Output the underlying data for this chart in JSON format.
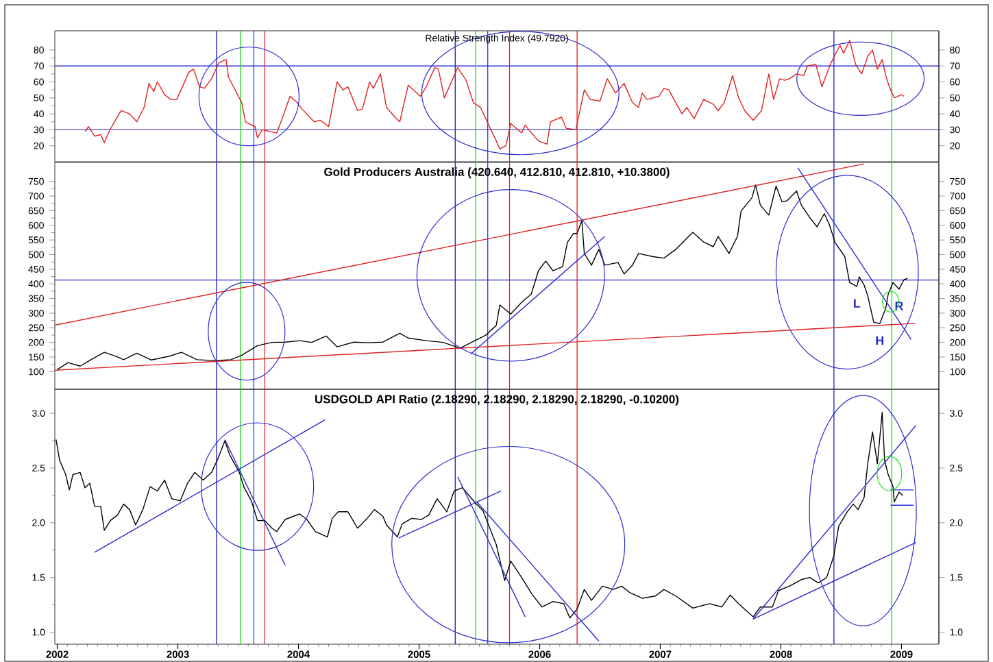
{
  "chart_data": [
    {
      "type": "line",
      "title": "Relative Strength Index (49.7920)",
      "xlim": [
        2001.98,
        2009.31
      ],
      "ylim": [
        10,
        92
      ],
      "yticks": [
        20,
        30,
        40,
        50,
        60,
        70,
        80
      ],
      "y2lim": [
        10,
        92
      ],
      "y2ticks": [
        20,
        30,
        40,
        50,
        60,
        70,
        80
      ],
      "tick_labels": "y",
      "series": [
        {
          "color": "#e02020",
          "x": [
            2002.23,
            2002.26,
            2002.31,
            2002.36,
            2002.39,
            2002.43,
            2002.49,
            2002.53,
            2002.6,
            2002.66,
            2002.72,
            2002.76,
            2002.8,
            2002.83,
            2002.89,
            2002.94,
            2002.99,
            2003.05,
            2003.09,
            2003.13,
            2003.18,
            2003.22,
            2003.28,
            2003.34,
            2003.4,
            2003.42,
            2003.53,
            2003.56,
            2003.64,
            2003.66,
            2003.7,
            2003.82,
            2003.87,
            2003.93,
            2003.99,
            2004.03,
            2004.13,
            2004.18,
            2004.25,
            2004.32,
            2004.37,
            2004.41,
            2004.49,
            2004.53,
            2004.59,
            2004.62,
            2004.68,
            2004.73,
            2004.8,
            2004.84,
            2004.91,
            2005.01,
            2005.06,
            2005.13,
            2005.16,
            2005.21,
            2005.28,
            2005.32,
            2005.39,
            2005.45,
            2005.51,
            2005.59,
            2005.61,
            2005.67,
            2005.72,
            2005.76,
            2005.85,
            2005.88,
            2005.91,
            2005.99,
            2006.06,
            2006.09,
            2006.18,
            2006.22,
            2006.3,
            2006.37,
            2006.42,
            2006.5,
            2006.56,
            2006.63,
            2006.7,
            2006.77,
            2006.82,
            2006.85,
            2006.89,
            2006.99,
            2007.03,
            2007.07,
            2007.18,
            2007.22,
            2007.28,
            2007.36,
            2007.44,
            2007.48,
            2007.53,
            2007.6,
            2007.65,
            2007.7,
            2007.77,
            2007.84,
            2007.9,
            2007.94,
            2007.99,
            2008.03,
            2008.07,
            2008.13,
            2008.19,
            2008.22,
            2008.29,
            2008.34,
            2008.36,
            2008.41,
            2008.49,
            2008.52,
            2008.57,
            2008.62,
            2008.67,
            2008.72,
            2008.76,
            2008.8,
            2008.84,
            2008.87,
            2008.89,
            2008.91,
            2008.94,
            2009.0,
            2009.02
          ],
          "values": [
            29,
            32,
            26,
            27,
            22,
            29,
            37,
            42,
            40,
            35,
            44,
            59,
            54,
            60,
            52,
            49,
            49,
            59,
            66,
            68,
            57,
            56,
            62,
            72,
            74,
            63,
            47,
            35,
            32,
            25,
            30,
            28,
            38,
            51,
            47,
            43,
            35,
            36,
            32,
            60,
            55,
            57,
            42,
            43,
            60,
            56,
            65,
            44,
            38,
            35,
            58,
            51,
            57,
            69,
            68,
            50,
            62,
            69,
            61,
            47,
            44,
            31,
            28,
            18,
            20,
            34,
            28,
            33,
            30,
            23,
            21,
            35,
            38,
            31,
            30,
            55,
            49,
            48,
            62,
            53,
            59,
            47,
            44,
            53,
            49,
            51,
            56,
            55,
            40,
            44,
            37,
            49,
            46,
            42,
            47,
            64,
            50,
            42,
            36,
            42,
            65,
            49,
            62,
            61,
            62,
            65,
            64,
            70,
            71,
            57,
            61,
            71,
            83,
            78,
            86,
            71,
            65,
            76,
            80,
            68,
            74,
            64,
            59,
            55,
            50,
            52,
            51
          ]
        }
      ],
      "ref_lines": [
        {
          "axis": "y",
          "value": 70,
          "color": "#2a2ad0"
        },
        {
          "axis": "y",
          "value": 30,
          "color": "#2a2ad0"
        },
        {
          "axis": "x",
          "value": 2003.32,
          "color": "#2a2ad0"
        },
        {
          "axis": "x",
          "value": 2003.52,
          "color": "#22dd22"
        },
        {
          "axis": "x",
          "value": 2003.63,
          "color": "#2a2ad0"
        },
        {
          "axis": "x",
          "value": 2003.72,
          "color": "#e02020"
        },
        {
          "axis": "x",
          "value": 2005.3,
          "color": "#2a2ad0"
        },
        {
          "axis": "x",
          "value": 2005.47,
          "color": "#22dd22"
        },
        {
          "axis": "x",
          "value": 2005.57,
          "color": "#2a2ad0"
        },
        {
          "axis": "x",
          "value": 2005.75,
          "color": "#e02020"
        },
        {
          "axis": "x",
          "value": 2006.31,
          "color": "#e02020"
        },
        {
          "axis": "x",
          "value": 2008.44,
          "color": "#2a2ad0"
        },
        {
          "axis": "x",
          "value": 2008.92,
          "color": "#22dd22"
        }
      ]
    },
    {
      "type": "line",
      "title": "Gold Producers Australia (420.640, 412.810, 412.810, +10.3800)",
      "xlim": [
        2001.98,
        2009.31
      ],
      "ylim": [
        40,
        815
      ],
      "yticks": [
        100,
        150,
        200,
        250,
        300,
        350,
        400,
        450,
        500,
        550,
        600,
        650,
        700,
        750
      ],
      "y2lim": [
        40,
        815
      ],
      "y2ticks": [
        100,
        150,
        200,
        250,
        300,
        350,
        400,
        450,
        500,
        550,
        600,
        650,
        700,
        750
      ],
      "tick_labels": "y",
      "series": [
        {
          "color": "#000000",
          "x": [
            2002.0,
            2002.09,
            2002.19,
            2002.28,
            2002.39,
            2002.49,
            2002.55,
            2002.66,
            2002.78,
            2002.93,
            2003.03,
            2003.16,
            2003.3,
            2003.44,
            2003.53,
            2003.66,
            2003.78,
            2003.89,
            2004.01,
            2004.11,
            2004.23,
            2004.32,
            2004.46,
            2004.58,
            2004.7,
            2004.84,
            2004.91,
            2005.06,
            2005.2,
            2005.34,
            2005.44,
            2005.55,
            2005.64,
            2005.67,
            2005.76,
            2005.85,
            2005.93,
            2005.99,
            2006.05,
            2006.11,
            2006.19,
            2006.23,
            2006.28,
            2006.31,
            2006.35,
            2006.37,
            2006.43,
            2006.49,
            2006.54,
            2006.65,
            2006.7,
            2006.77,
            2006.82,
            2006.94,
            2007.03,
            2007.13,
            2007.27,
            2007.36,
            2007.44,
            2007.48,
            2007.57,
            2007.64,
            2007.67,
            2007.76,
            2007.79,
            2007.83,
            2007.9,
            2007.96,
            2008.01,
            2008.05,
            2008.13,
            2008.17,
            2008.24,
            2008.3,
            2008.36,
            2008.4,
            2008.45,
            2008.53,
            2008.57,
            2008.63,
            2008.65,
            2008.69,
            2008.72,
            2008.77,
            2008.82,
            2008.87,
            2008.89,
            2008.93,
            2008.98,
            2009.02,
            2009.05
          ],
          "values": [
            107,
            131,
            119,
            141,
            166,
            152,
            141,
            163,
            140,
            153,
            166,
            141,
            138,
            141,
            156,
            189,
            200,
            201,
            206,
            200,
            222,
            185,
            201,
            199,
            201,
            231,
            215,
            206,
            200,
            180,
            201,
            224,
            258,
            328,
            297,
            337,
            365,
            445,
            478,
            445,
            459,
            542,
            572,
            572,
            616,
            504,
            464,
            518,
            464,
            473,
            434,
            464,
            504,
            493,
            488,
            518,
            576,
            543,
            527,
            562,
            504,
            562,
            649,
            694,
            738,
            669,
            635,
            734,
            680,
            684,
            717,
            669,
            626,
            595,
            640,
            605,
            541,
            493,
            405,
            391,
            424,
            396,
            360,
            269,
            264,
            317,
            365,
            405,
            382,
            414,
            419
          ]
        },
        {
          "color": "#e02020",
          "x": [
            2001.98,
            2008.69
          ],
          "values": [
            259,
            810
          ]
        },
        {
          "color": "#e02020",
          "x": [
            2001.98,
            2009.11
          ],
          "values": [
            105,
            265
          ]
        },
        {
          "color": "#2a2ad0",
          "x": [
            2008.14,
            2009.08
          ],
          "values": [
            797,
            210
          ]
        },
        {
          "color": "#2a2ad0",
          "x": [
            2005.43,
            2006.54
          ],
          "values": [
            161,
            562
          ]
        }
      ],
      "annotations": [
        {
          "text": "L",
          "x": 2008.63,
          "y": 391
        },
        {
          "text": "H",
          "x": 2008.82,
          "y": 264
        },
        {
          "text": "R",
          "x": 2008.98,
          "y": 382
        }
      ],
      "ref_lines": [
        {
          "axis": "y",
          "value": 413,
          "color": "#2a2ad0"
        },
        {
          "axis": "x",
          "value": 2003.32,
          "color": "#2a2ad0"
        },
        {
          "axis": "x",
          "value": 2003.52,
          "color": "#22dd22"
        },
        {
          "axis": "x",
          "value": 2003.63,
          "color": "#2a2ad0"
        },
        {
          "axis": "x",
          "value": 2003.72,
          "color": "#e02020"
        },
        {
          "axis": "x",
          "value": 2005.3,
          "color": "#2a2ad0"
        },
        {
          "axis": "x",
          "value": 2005.47,
          "color": "#22dd22"
        },
        {
          "axis": "x",
          "value": 2005.57,
          "color": "#2a2ad0"
        },
        {
          "axis": "x",
          "value": 2005.75,
          "color": "#e02020"
        },
        {
          "axis": "x",
          "value": 2006.31,
          "color": "#e02020"
        },
        {
          "axis": "x",
          "value": 2008.44,
          "color": "#2a2ad0"
        },
        {
          "axis": "x",
          "value": 2008.92,
          "color": "#22dd22"
        }
      ]
    },
    {
      "type": "line",
      "title": "USDGOLD API Ratio (2.18290, 2.18290, 2.18290, 2.18290, -0.10200)",
      "xlim": [
        2001.98,
        2009.31
      ],
      "xticks": [
        2002,
        2003,
        2004,
        2005,
        2006,
        2007,
        2008,
        2009
      ],
      "ylim": [
        0.89,
        3.22
      ],
      "yticks": [
        {
          "value": 1,
          "label": "1.0"
        },
        {
          "value": 1.5,
          "label": "1.5"
        },
        {
          "value": 2,
          "label": "2.0"
        },
        {
          "value": 2.5,
          "label": "2.5"
        },
        {
          "value": 3,
          "label": "3.0"
        }
      ],
      "y2lim": [
        0.89,
        3.22
      ],
      "y2ticks": [
        {
          "value": 1,
          "label": "1.0"
        },
        {
          "value": 1.5,
          "label": "1.5"
        },
        {
          "value": 2,
          "label": "2.0"
        },
        {
          "value": 2.5,
          "label": "2.5"
        },
        {
          "value": 3,
          "label": "3.0"
        }
      ],
      "series": [
        {
          "color": "#000000",
          "x": [
            2001.99,
            2002.02,
            2002.07,
            2002.1,
            2002.13,
            2002.19,
            2002.23,
            2002.27,
            2002.31,
            2002.36,
            2002.39,
            2002.44,
            2002.5,
            2002.55,
            2002.6,
            2002.65,
            2002.71,
            2002.77,
            2002.83,
            2002.89,
            2002.95,
            2003.02,
            2003.08,
            2003.14,
            2003.21,
            2003.28,
            2003.33,
            2003.39,
            2003.43,
            2003.51,
            2003.55,
            2003.61,
            2003.66,
            2003.72,
            2003.78,
            2003.82,
            2003.89,
            2004.01,
            2004.07,
            2004.14,
            2004.24,
            2004.28,
            2004.33,
            2004.41,
            2004.49,
            2004.57,
            2004.63,
            2004.7,
            2004.73,
            2004.82,
            2004.86,
            2004.94,
            2005.02,
            2005.08,
            2005.15,
            2005.23,
            2005.29,
            2005.36,
            2005.46,
            2005.53,
            2005.59,
            2005.64,
            2005.71,
            2005.76,
            2005.85,
            2005.94,
            2006.02,
            2006.11,
            2006.2,
            2006.25,
            2006.31,
            2006.37,
            2006.43,
            2006.52,
            2006.61,
            2006.68,
            2006.75,
            2006.85,
            2006.96,
            2007.03,
            2007.13,
            2007.27,
            2007.41,
            2007.51,
            2007.58,
            2007.65,
            2007.7,
            2007.77,
            2007.83,
            2007.93,
            2007.98,
            2008.07,
            2008.17,
            2008.24,
            2008.31,
            2008.38,
            2008.44,
            2008.48,
            2008.55,
            2008.6,
            2008.64,
            2008.69,
            2008.72,
            2008.76,
            2008.8,
            2008.84,
            2008.86,
            2008.89,
            2008.93,
            2008.94,
            2008.98,
            2009.01
          ],
          "values": [
            2.76,
            2.57,
            2.44,
            2.3,
            2.44,
            2.46,
            2.32,
            2.36,
            2.15,
            2.15,
            1.93,
            2.02,
            2.07,
            2.17,
            2.12,
            1.98,
            2.12,
            2.33,
            2.29,
            2.39,
            2.22,
            2.2,
            2.36,
            2.46,
            2.39,
            2.46,
            2.58,
            2.75,
            2.62,
            2.46,
            2.32,
            2.2,
            2.02,
            2.02,
            1.95,
            1.92,
            2.03,
            2.08,
            2.03,
            1.92,
            1.87,
            2.04,
            2.1,
            2.1,
            1.95,
            2.04,
            2.12,
            2.06,
            1.98,
            1.87,
            1.99,
            2.04,
            2.03,
            2.07,
            2.22,
            2.1,
            2.29,
            2.32,
            2.19,
            2.11,
            1.94,
            1.8,
            1.47,
            1.65,
            1.5,
            1.34,
            1.23,
            1.28,
            1.26,
            1.13,
            1.21,
            1.39,
            1.29,
            1.42,
            1.39,
            1.42,
            1.36,
            1.31,
            1.33,
            1.39,
            1.33,
            1.22,
            1.26,
            1.23,
            1.34,
            1.26,
            1.21,
            1.14,
            1.23,
            1.23,
            1.38,
            1.42,
            1.48,
            1.5,
            1.45,
            1.5,
            1.7,
            1.97,
            2.1,
            2.17,
            2.12,
            2.23,
            2.54,
            2.83,
            2.54,
            3.01,
            2.57,
            2.44,
            2.33,
            2.19,
            2.28,
            2.25
          ]
        },
        {
          "color": "#2a2ad0",
          "x": [
            2002.31,
            2004.22
          ],
          "values": [
            1.73,
            2.94
          ]
        },
        {
          "color": "#2a2ad0",
          "x": [
            2003.39,
            2003.89
          ],
          "values": [
            2.76,
            1.61
          ]
        },
        {
          "color": "#2a2ad0",
          "x": [
            2004.83,
            2005.68
          ],
          "values": [
            1.86,
            2.29
          ]
        },
        {
          "color": "#2a2ad0",
          "x": [
            2005.32,
            2005.88
          ],
          "values": [
            2.42,
            1.14
          ]
        },
        {
          "color": "#2a2ad0",
          "x": [
            2005.48,
            2006.49
          ],
          "values": [
            2.19,
            0.92
          ]
        },
        {
          "color": "#2a2ad0",
          "x": [
            2007.77,
            2009.12
          ],
          "values": [
            1.12,
            2.89
          ]
        },
        {
          "color": "#2a2ad0",
          "x": [
            2007.77,
            2009.12
          ],
          "values": [
            1.12,
            1.82
          ]
        },
        {
          "color": "#2a2ad0",
          "x": [
            2008.91,
            2009.1
          ],
          "values": [
            2.3,
            2.3
          ]
        },
        {
          "color": "#2a2ad0",
          "x": [
            2008.91,
            2009.1
          ],
          "values": [
            2.16,
            2.16
          ]
        }
      ],
      "ref_lines": [
        {
          "axis": "x",
          "value": 2003.32,
          "color": "#2a2ad0"
        },
        {
          "axis": "x",
          "value": 2003.52,
          "color": "#22dd22"
        },
        {
          "axis": "x",
          "value": 2003.63,
          "color": "#2a2ad0"
        },
        {
          "axis": "x",
          "value": 2003.72,
          "color": "#e02020"
        },
        {
          "axis": "x",
          "value": 2005.3,
          "color": "#2a2ad0"
        },
        {
          "axis": "x",
          "value": 2005.47,
          "color": "#22dd22"
        },
        {
          "axis": "x",
          "value": 2005.57,
          "color": "#2a2ad0"
        },
        {
          "axis": "x",
          "value": 2005.75,
          "color": "#e02020"
        },
        {
          "axis": "x",
          "value": 2006.31,
          "color": "#e02020"
        },
        {
          "axis": "x",
          "value": 2008.44,
          "color": "#2a2ad0"
        },
        {
          "axis": "x",
          "value": 2008.92,
          "color": "#22dd22"
        }
      ]
    }
  ]
}
